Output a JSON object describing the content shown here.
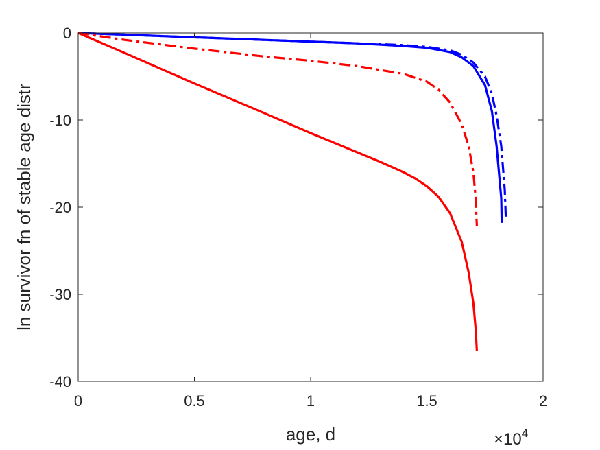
{
  "chart_data": {
    "type": "line",
    "xlabel": "age, d",
    "ylabel": "ln survivor fn of stable age distr",
    "x_exponent_label": {
      "base": "×10",
      "exponent": "4"
    },
    "xlim": [
      0,
      20000
    ],
    "ylim": [
      -40,
      0
    ],
    "xticks": [
      0,
      5000,
      10000,
      15000,
      20000
    ],
    "xtick_labels": [
      "0",
      "0.5",
      "1",
      "1.5",
      "2"
    ],
    "yticks": [
      0,
      -10,
      -20,
      -30,
      -40
    ],
    "ytick_labels": [
      "0",
      "-10",
      "-20",
      "-30",
      "-40"
    ],
    "grid": false,
    "series": [
      {
        "color": "#0000ff",
        "style": "solid",
        "x": [
          0,
          2000,
          5000,
          8000,
          10000,
          12000,
          14000,
          15000,
          16000,
          16500,
          17000,
          17500,
          17800,
          18000,
          18200,
          18220
        ],
        "y": [
          0,
          -0.2,
          -0.5,
          -0.8,
          -1.0,
          -1.2,
          -1.5,
          -1.7,
          -2.2,
          -2.8,
          -3.8,
          -6.0,
          -9.0,
          -13.0,
          -19.0,
          -21.8
        ]
      },
      {
        "color": "#0000ff",
        "style": "dashdot",
        "x": [
          0,
          2000,
          5000,
          8000,
          10000,
          12000,
          14000,
          15000,
          16000,
          16500,
          17000,
          17500,
          17800,
          18000,
          18200,
          18350,
          18400
        ],
        "y": [
          0,
          -0.2,
          -0.5,
          -0.8,
          -1.0,
          -1.2,
          -1.4,
          -1.6,
          -2.0,
          -2.5,
          -3.4,
          -5.0,
          -7.0,
          -9.5,
          -13.0,
          -18.0,
          -21.5
        ]
      },
      {
        "color": "#ff0000",
        "style": "dashdot",
        "x": [
          0,
          2000,
          5000,
          8000,
          10000,
          12000,
          14000,
          15000,
          15500,
          16000,
          16500,
          16800,
          17000,
          17100,
          17150
        ],
        "y": [
          0,
          -0.8,
          -1.8,
          -2.7,
          -3.2,
          -3.8,
          -4.7,
          -5.6,
          -6.5,
          -8.0,
          -10.5,
          -13.0,
          -16.0,
          -19.0,
          -22.2
        ]
      },
      {
        "color": "#ff0000",
        "style": "solid",
        "x": [
          0,
          2000,
          5000,
          8000,
          10000,
          12000,
          13000,
          14000,
          14500,
          15000,
          15500,
          16000,
          16500,
          16800,
          17000,
          17100,
          17150
        ],
        "y": [
          0,
          -2.3,
          -5.8,
          -9.2,
          -11.5,
          -13.7,
          -14.8,
          -16.0,
          -16.7,
          -17.6,
          -18.8,
          -20.7,
          -24.0,
          -27.5,
          -31.0,
          -34.0,
          -36.5
        ]
      }
    ]
  }
}
